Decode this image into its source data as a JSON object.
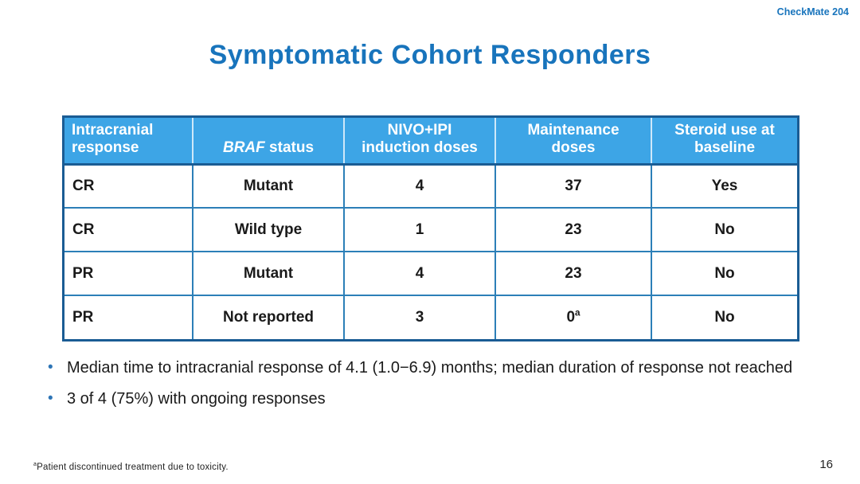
{
  "theme": {
    "accent_blue": "#1874BC",
    "header_fill": "#3DA5E6",
    "table_border": "#1A5C94",
    "grid_line": "#2C7FB8",
    "bullet_blue": "#2E75B6",
    "text_color": "#1A1A1A"
  },
  "header": {
    "study_label": "CheckMate 204"
  },
  "title": "Symptomatic Cohort Responders",
  "table": {
    "columns": [
      {
        "line1": "Intracranial",
        "line2": "response"
      },
      {
        "italic": "BRAF",
        "rest": " status"
      },
      {
        "line1": "NIVO+IPI",
        "line2": "induction doses"
      },
      {
        "line1": "Maintenance",
        "line2": "doses"
      },
      {
        "line1": "Steroid use at",
        "line2": "baseline"
      }
    ],
    "rows": [
      {
        "response": "CR",
        "braf": "Mutant",
        "induction_doses": "4",
        "maintenance_doses": "37",
        "maintenance_doses_sup": "",
        "steroid_use": "Yes"
      },
      {
        "response": "CR",
        "braf": "Wild type",
        "induction_doses": "1",
        "maintenance_doses": "23",
        "maintenance_doses_sup": "",
        "steroid_use": "No"
      },
      {
        "response": "PR",
        "braf": "Mutant",
        "induction_doses": "4",
        "maintenance_doses": "23",
        "maintenance_doses_sup": "",
        "steroid_use": "No"
      },
      {
        "response": "PR",
        "braf": "Not reported",
        "induction_doses": "3",
        "maintenance_doses": "0",
        "maintenance_doses_sup": "a",
        "steroid_use": "No"
      }
    ]
  },
  "bullets": {
    "glyph": "•",
    "items": [
      "Median time to intracranial response of 4.1 (1.0−6.9) months; median duration of response not reached",
      "3 of 4 (75%) with ongoing responses"
    ]
  },
  "footnote": {
    "sup": "a",
    "text": "Patient discontinued treatment due to toxicity."
  },
  "slide_number": "16"
}
